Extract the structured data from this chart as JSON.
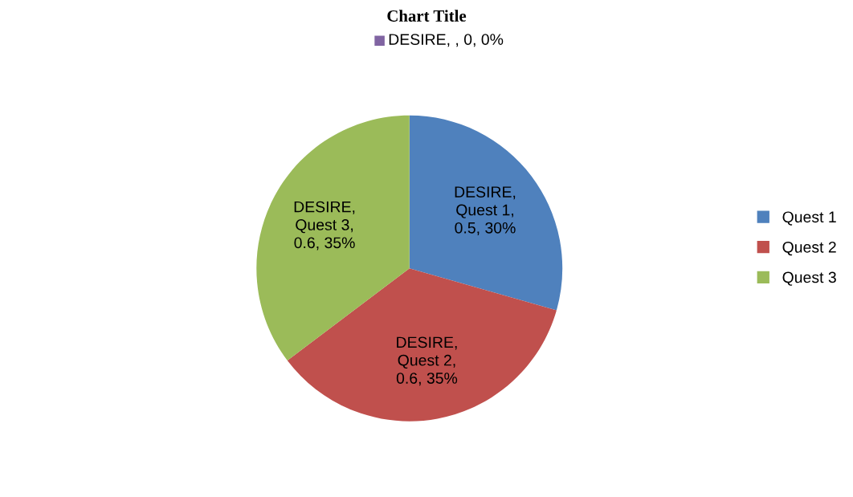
{
  "chart_data": {
    "type": "pie",
    "title": "Chart Title",
    "categories": [
      "Quest 1",
      "Quest 2",
      "Quest 3",
      null
    ],
    "values": [
      0.5,
      0.6,
      0.6,
      0
    ],
    "colors": [
      "#4f81bd",
      "#c0504d",
      "#9bbb59",
      "#8064a2"
    ],
    "value_labels": [
      "DESIRE, Quest 1, 0.5, 30%",
      "DESIRE, Quest 2, 0.6, 35%",
      "DESIRE, Quest 3, 0.6, 35%",
      "DESIRE, , 0, 0%"
    ],
    "legend": "right"
  }
}
